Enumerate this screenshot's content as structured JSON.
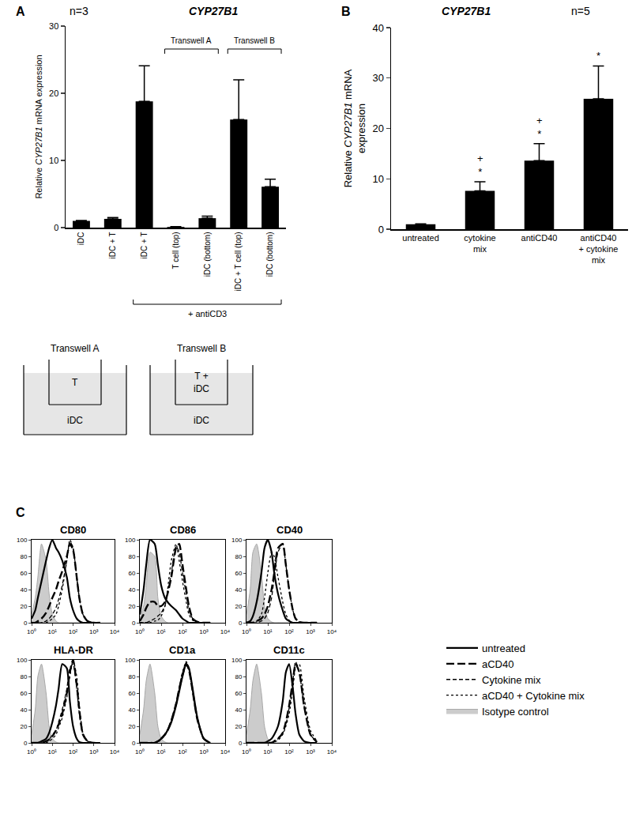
{
  "chart_data": [
    {
      "type": "bar",
      "label": "A",
      "note": "n=3",
      "title": "CYP27B1",
      "y_label": "Relative CYP27B1 mRNA expression",
      "categories": [
        "iDC",
        "iDC + T",
        "iDC + T",
        "T cell (top)",
        "iDC (bottom)",
        "iDC + T cell (top)",
        "iDC (bottom)"
      ],
      "values": [
        1,
        1.3,
        18.8,
        0.1,
        1.4,
        16.1,
        6.1
      ],
      "errors": [
        0.05,
        0.2,
        5.3,
        0.05,
        0.3,
        5.9,
        1.1
      ],
      "color": "#000000",
      "ylim": [
        0,
        30
      ],
      "yticks": [
        0,
        10,
        20,
        30
      ],
      "top_brackets": [
        {
          "text": "Transwell A",
          "from": 3,
          "to": 4
        },
        {
          "text": "Transwell B",
          "from": 5,
          "to": 6
        }
      ],
      "bottom_brackets": [
        {
          "text": "+ antiCD3",
          "from": 2,
          "to": 6
        }
      ],
      "diagrams": [
        {
          "title": "Transwell A",
          "insert": "T",
          "well": "iDC"
        },
        {
          "title": "Transwell B",
          "insert": "T +\niDC",
          "well": "iDC"
        }
      ]
    },
    {
      "type": "bar",
      "label": "B",
      "note": "n=5",
      "title": "CYP27B1",
      "y_label": "Relative CYP27B1 mRNA\nexpression",
      "categories": [
        "untreated",
        "cytokine\nmix",
        "antiCD40",
        "antiCD40\n+ cytokine\nmix"
      ],
      "values": [
        1,
        7.6,
        13.6,
        25.9
      ],
      "errors": [
        0.05,
        1.8,
        3.4,
        6.5
      ],
      "significance": [
        null,
        "+\n*",
        "+\n*",
        "*"
      ],
      "color": "#000000",
      "ylim": [
        0,
        40
      ],
      "yticks": [
        0,
        10,
        20,
        30,
        40
      ]
    },
    {
      "type": "line",
      "label": "C",
      "log": "x",
      "xlim": [
        1,
        10000
      ],
      "xticks": [
        {
          "value": 1,
          "label": "10⁰"
        },
        {
          "value": 10,
          "label": "10¹"
        },
        {
          "value": 100,
          "label": "10²"
        },
        {
          "value": 1000,
          "label": "10³"
        },
        {
          "value": 10000,
          "label": "10⁴"
        }
      ],
      "ylim": [
        0,
        100
      ],
      "yticks": [
        0,
        20,
        40,
        60,
        80,
        100
      ],
      "legend": "right",
      "x": [
        1,
        1.5,
        2,
        3,
        5,
        7,
        10,
        15,
        20,
        30,
        50,
        70,
        100,
        150,
        200,
        300,
        500,
        1000,
        2000
      ],
      "series": [
        {
          "name": "untreated",
          "color": "#000000",
          "line_style": "solid"
        },
        {
          "name": "aCD40",
          "color": "#000000",
          "line_style": "longdash"
        },
        {
          "name": "Cytokine mix",
          "color": "#000000",
          "line_style": "dash"
        },
        {
          "name": "aCD40 + Cytokine mix",
          "color": "#000000",
          "line_style": "dot"
        },
        {
          "name": "Isotype control",
          "color": "#cccccc",
          "line_style": "solid",
          "type": "area"
        }
      ],
      "panels": [
        {
          "title": "CD80",
          "values": [
            [
              5,
              15,
              30,
              50,
              75,
              90,
              100,
              90,
              85,
              75,
              55,
              30,
              15,
              5,
              2,
              0,
              0,
              0,
              0
            ],
            [
              0,
              0,
              2,
              5,
              12,
              20,
              30,
              40,
              50,
              62,
              80,
              95,
              88,
              55,
              30,
              10,
              2,
              0,
              0
            ],
            [
              0,
              0,
              0,
              0,
              2,
              5,
              10,
              18,
              28,
              45,
              75,
              98,
              90,
              55,
              30,
              10,
              2,
              0,
              0
            ],
            [
              0,
              0,
              0,
              0,
              0,
              2,
              5,
              10,
              20,
              40,
              75,
              100,
              90,
              55,
              30,
              10,
              2,
              0,
              0
            ],
            [
              10,
              30,
              55,
              95,
              75,
              35,
              10,
              2,
              0,
              0,
              0,
              0,
              0,
              0,
              0,
              0,
              0,
              0,
              0
            ]
          ]
        },
        {
          "title": "CD86",
          "values": [
            [
              10,
              40,
              70,
              100,
              95,
              70,
              45,
              30,
              25,
              20,
              15,
              10,
              5,
              2,
              0,
              0,
              0,
              0,
              0
            ],
            [
              2,
              10,
              18,
              25,
              25,
              20,
              20,
              25,
              35,
              55,
              90,
              95,
              70,
              40,
              20,
              5,
              1,
              0,
              0
            ],
            [
              0,
              0,
              0,
              2,
              5,
              8,
              12,
              20,
              35,
              60,
              92,
              85,
              60,
              35,
              15,
              5,
              1,
              0,
              0
            ],
            [
              0,
              0,
              0,
              0,
              2,
              3,
              8,
              20,
              40,
              75,
              95,
              75,
              50,
              25,
              10,
              3,
              0,
              0,
              0
            ],
            [
              5,
              20,
              45,
              85,
              80,
              30,
              8,
              2,
              0,
              0,
              0,
              0,
              0,
              0,
              0,
              0,
              0,
              0,
              0
            ]
          ]
        },
        {
          "title": "CD40",
          "values": [
            [
              0,
              2,
              8,
              25,
              60,
              90,
              100,
              85,
              60,
              35,
              15,
              5,
              2,
              0,
              0,
              0,
              0,
              0,
              0
            ],
            [
              0,
              0,
              0,
              2,
              5,
              10,
              20,
              40,
              60,
              90,
              95,
              70,
              40,
              15,
              5,
              1,
              0,
              0,
              0
            ],
            [
              0,
              0,
              0,
              0,
              2,
              5,
              12,
              30,
              55,
              85,
              95,
              70,
              40,
              15,
              5,
              1,
              0,
              0,
              0
            ],
            [
              0,
              0,
              0,
              2,
              10,
              30,
              60,
              85,
              80,
              55,
              25,
              10,
              3,
              0,
              0,
              0,
              0,
              0,
              0
            ],
            [
              10,
              40,
              85,
              95,
              60,
              20,
              5,
              1,
              0,
              0,
              0,
              0,
              0,
              0,
              0,
              0,
              0,
              0,
              0
            ]
          ]
        },
        {
          "title": "HLA-DR",
          "values": [
            [
              0,
              0,
              0,
              2,
              5,
              12,
              25,
              45,
              65,
              95,
              90,
              50,
              20,
              5,
              1,
              0,
              0,
              0,
              0
            ],
            [
              0,
              0,
              0,
              0,
              2,
              4,
              8,
              15,
              22,
              35,
              60,
              85,
              100,
              70,
              40,
              10,
              2,
              0,
              0
            ],
            [
              0,
              0,
              0,
              0,
              2,
              4,
              10,
              15,
              25,
              40,
              65,
              90,
              95,
              65,
              35,
              10,
              2,
              0,
              0
            ],
            [
              0,
              0,
              0,
              0,
              0,
              2,
              5,
              10,
              18,
              30,
              55,
              80,
              100,
              80,
              45,
              12,
              2,
              0,
              0
            ],
            [
              10,
              40,
              80,
              95,
              60,
              20,
              5,
              1,
              0,
              0,
              0,
              0,
              0,
              0,
              0,
              0,
              0,
              0,
              0
            ]
          ]
        },
        {
          "title": "CD1a",
          "values": [
            [
              0,
              0,
              0,
              0,
              0,
              2,
              5,
              10,
              15,
              25,
              45,
              62,
              80,
              95,
              90,
              65,
              30,
              5,
              0
            ],
            [
              0,
              0,
              0,
              0,
              0,
              2,
              5,
              10,
              15,
              27,
              47,
              65,
              82,
              95,
              88,
              62,
              28,
              5,
              0
            ],
            [
              0,
              0,
              0,
              0,
              0,
              2,
              5,
              10,
              16,
              27,
              48,
              66,
              84,
              97,
              88,
              62,
              28,
              5,
              0
            ],
            [
              0,
              0,
              0,
              0,
              0,
              1,
              4,
              9,
              15,
              26,
              46,
              66,
              85,
              98,
              90,
              62,
              28,
              5,
              0
            ],
            [
              10,
              40,
              75,
              95,
              60,
              20,
              5,
              1,
              0,
              0,
              0,
              0,
              0,
              0,
              0,
              0,
              0,
              0,
              0
            ]
          ]
        },
        {
          "title": "CD11c",
          "values": [
            [
              0,
              0,
              0,
              0,
              0,
              0,
              2,
              5,
              10,
              20,
              50,
              85,
              95,
              65,
              35,
              10,
              2,
              0,
              0
            ],
            [
              0,
              0,
              0,
              0,
              0,
              0,
              0,
              0,
              2,
              5,
              12,
              25,
              45,
              75,
              95,
              85,
              45,
              10,
              1
            ],
            [
              0,
              0,
              0,
              0,
              0,
              0,
              0,
              0,
              2,
              5,
              12,
              22,
              42,
              75,
              98,
              85,
              45,
              10,
              1
            ],
            [
              0,
              0,
              0,
              0,
              0,
              0,
              0,
              0,
              1,
              3,
              10,
              20,
              35,
              65,
              90,
              95,
              55,
              15,
              2
            ],
            [
              10,
              40,
              75,
              95,
              60,
              20,
              5,
              1,
              0,
              0,
              0,
              0,
              0,
              0,
              0,
              0,
              0,
              0,
              0
            ]
          ]
        }
      ]
    }
  ]
}
